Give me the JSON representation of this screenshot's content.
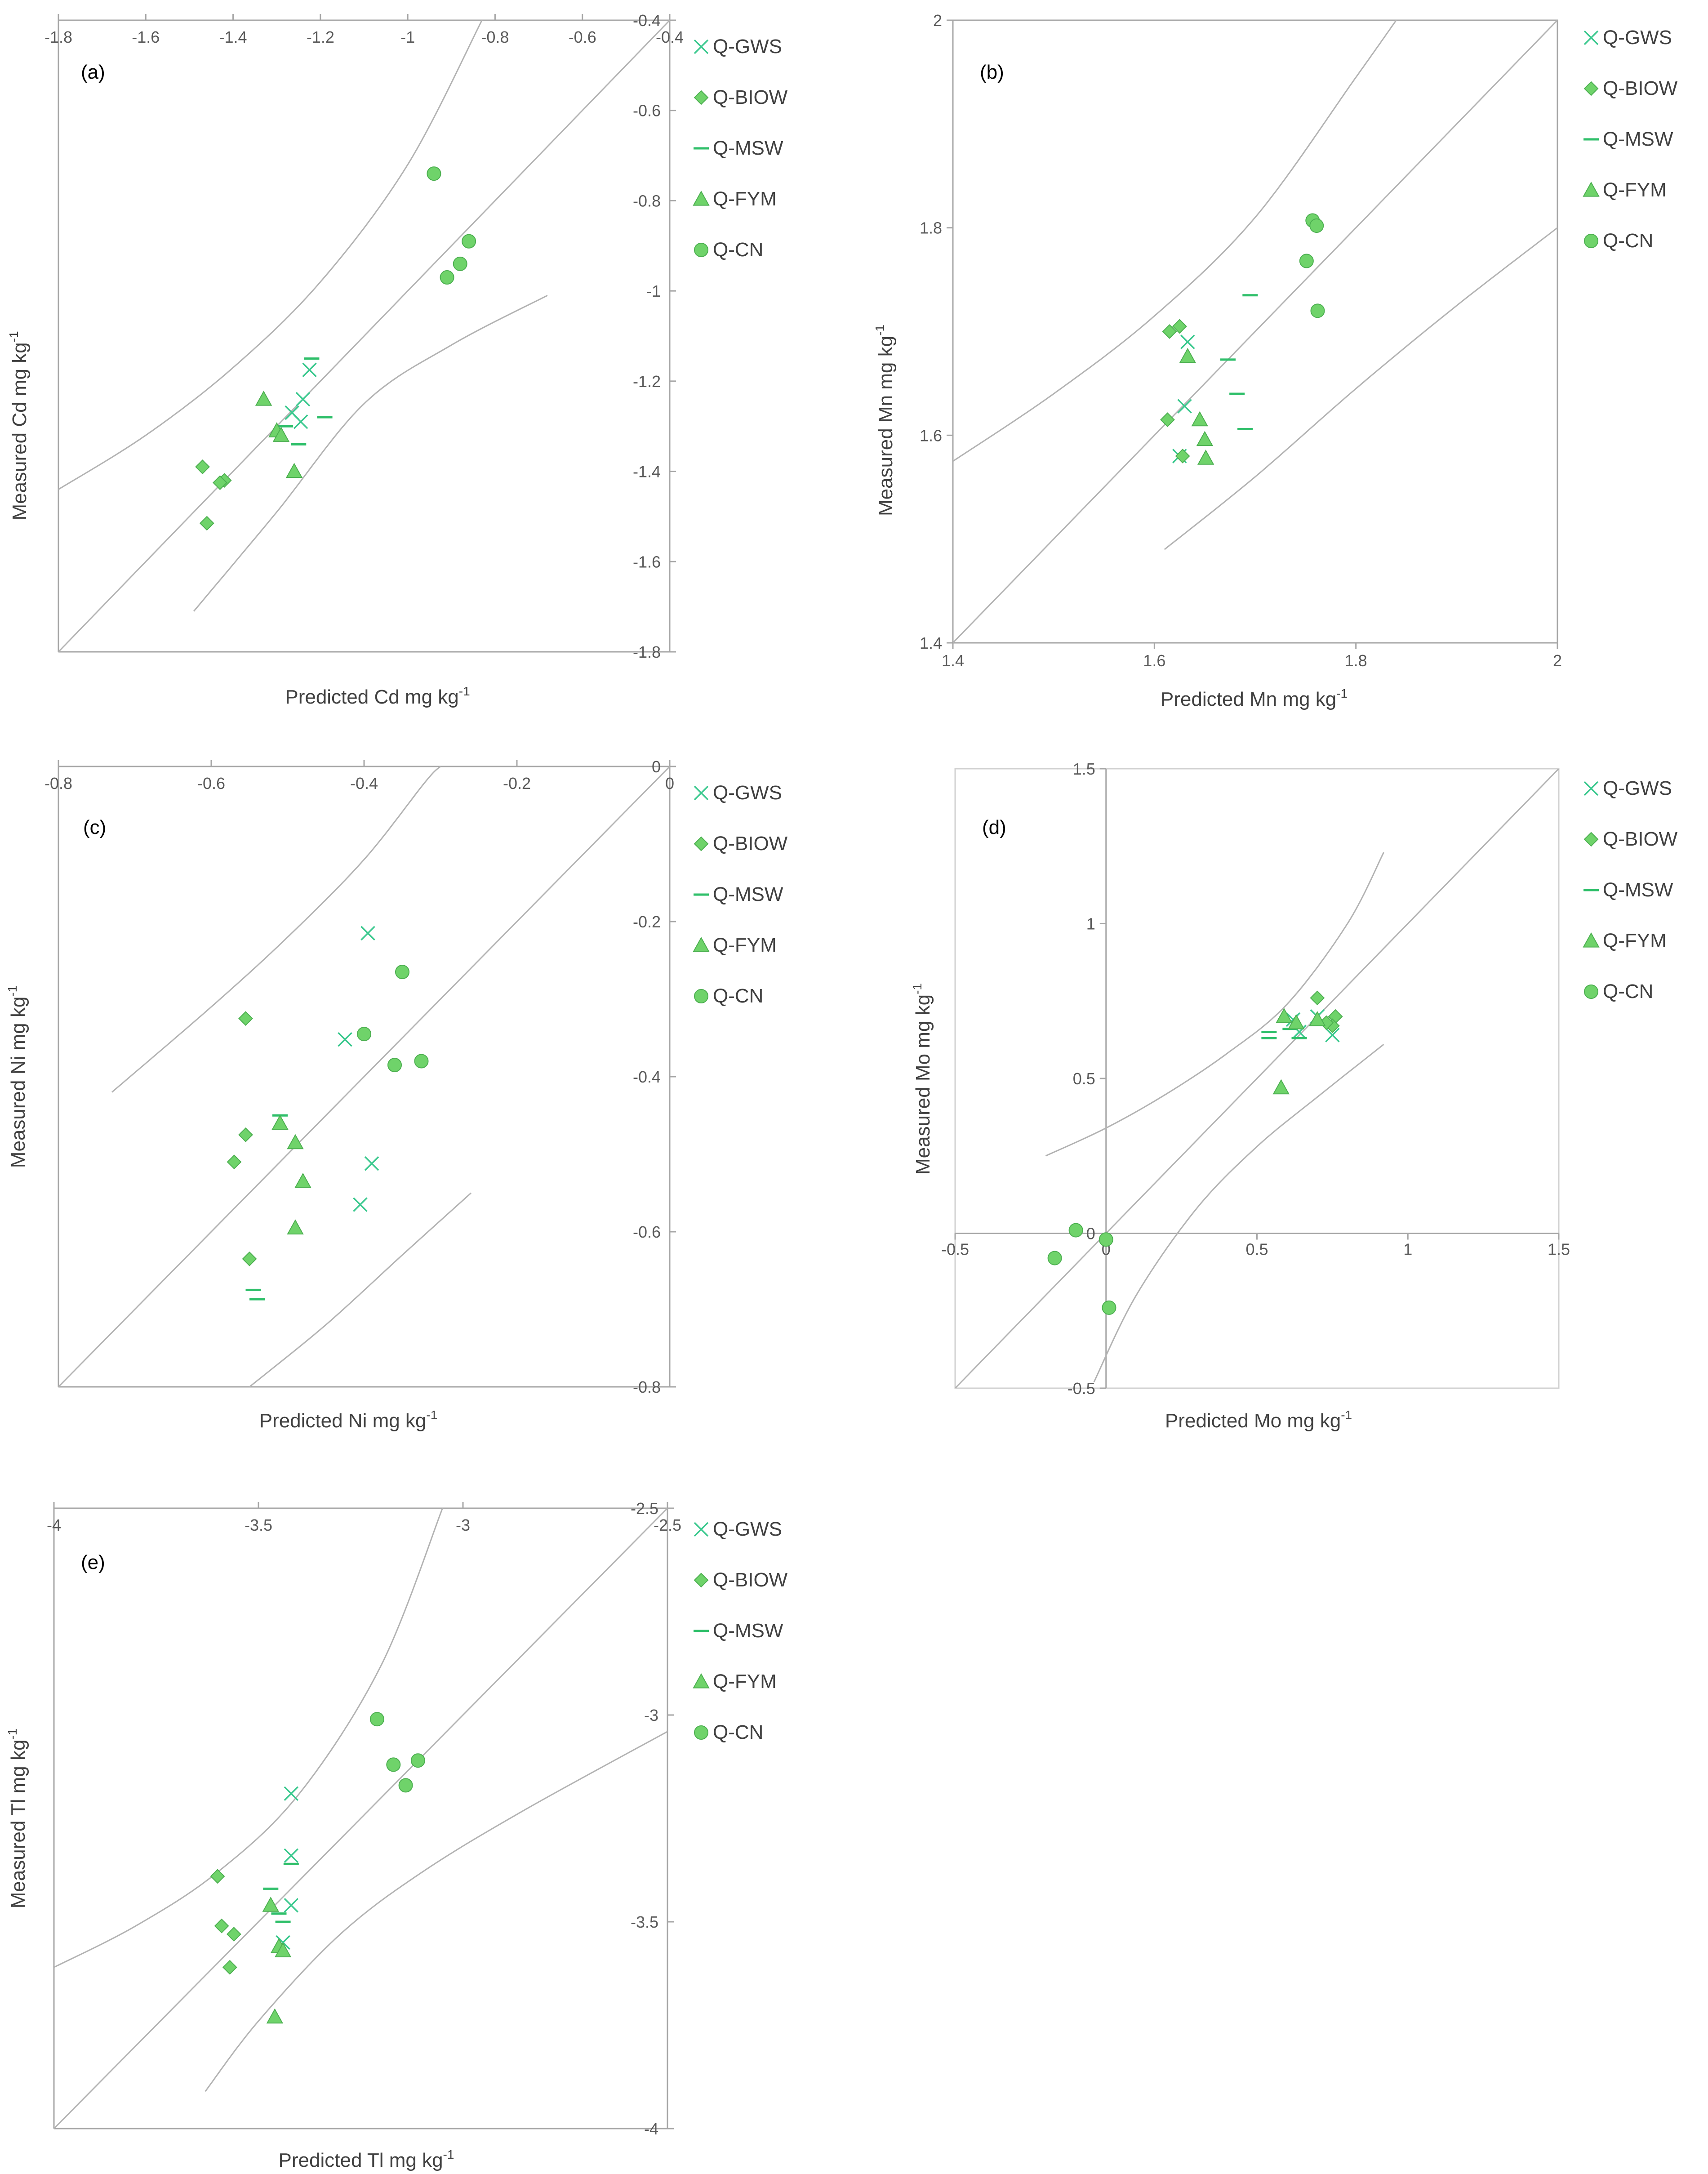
{
  "colors": {
    "marker_fill": "#6fd36a",
    "marker_stroke": "#4caf50",
    "marker_teal": "#3cc98f",
    "band_line": "#b3b3b3",
    "axis_line": "#a6a6a6"
  },
  "legend": [
    {
      "label": "Q-GWS",
      "marker": "x"
    },
    {
      "label": "Q-BIOW",
      "marker": "diamond"
    },
    {
      "label": "Q-MSW",
      "marker": "dash"
    },
    {
      "label": "Q-FYM",
      "marker": "triangle"
    },
    {
      "label": "Q-CN",
      "marker": "circle"
    }
  ],
  "chart_data": [
    {
      "type": "scatter",
      "panel": "(a)",
      "xlabel": "Predicted Cd mg kg",
      "ylabel": "Measured Cd mg kg",
      "unit_sup": "-1",
      "xlim": [
        -1.8,
        -0.4
      ],
      "ylim": [
        -1.8,
        -0.4
      ],
      "xticks": [
        "-1.8",
        "-1.6",
        "-1.4",
        "-1.2",
        "-1",
        "-0.8",
        "-0.6",
        "-0.4"
      ],
      "yticks": [
        "-0.4",
        "-0.6",
        "-0.8",
        "-1",
        "-1.2",
        "-1.4",
        "-1.6",
        "-1.8"
      ],
      "band_upper": [
        [
          -1.8,
          -1.44
        ],
        [
          -1.6,
          -1.32
        ],
        [
          -1.4,
          -1.17
        ],
        [
          -1.2,
          -0.98
        ],
        [
          -1.0,
          -0.72
        ],
        [
          -0.83,
          -0.4
        ]
      ],
      "band_lower": [
        [
          -1.49,
          -1.71
        ],
        [
          -1.3,
          -1.49
        ],
        [
          -1.1,
          -1.25
        ],
        [
          -0.9,
          -1.12
        ],
        [
          -0.68,
          -1.01
        ]
      ],
      "series": [
        {
          "name": "Q-GWS",
          "points": [
            [
              -1.265,
              -1.27
            ],
            [
              -1.24,
              -1.24
            ],
            [
              -1.245,
              -1.29
            ],
            [
              -1.225,
              -1.175
            ]
          ]
        },
        {
          "name": "Q-BIOW",
          "points": [
            [
              -1.47,
              -1.39
            ],
            [
              -1.42,
              -1.42
            ],
            [
              -1.43,
              -1.425
            ],
            [
              -1.46,
              -1.515
            ]
          ]
        },
        {
          "name": "Q-MSW",
          "points": [
            [
              -1.22,
              -1.15
            ],
            [
              -1.19,
              -1.28
            ],
            [
              -1.25,
              -1.34
            ],
            [
              -1.28,
              -1.3
            ]
          ]
        },
        {
          "name": "Q-FYM",
          "points": [
            [
              -1.33,
              -1.24
            ],
            [
              -1.3,
              -1.31
            ],
            [
              -1.29,
              -1.32
            ],
            [
              -1.26,
              -1.4
            ]
          ]
        },
        {
          "name": "Q-CN",
          "points": [
            [
              -0.94,
              -0.74
            ],
            [
              -0.86,
              -0.89
            ],
            [
              -0.88,
              -0.94
            ],
            [
              -0.91,
              -0.97
            ]
          ]
        }
      ]
    },
    {
      "type": "scatter",
      "panel": "(b)",
      "xlabel": "Predicted Mn mg kg",
      "ylabel": "Measured Mn mg kg",
      "unit_sup": "-1",
      "xlim": [
        1.4,
        2.0
      ],
      "ylim": [
        1.4,
        2.0
      ],
      "xticks": [
        "1.4",
        "1.6",
        "1.8",
        "2"
      ],
      "yticks": [
        "2",
        "1.8",
        "1.6",
        "1.4"
      ],
      "band_upper": [
        [
          1.4,
          1.575
        ],
        [
          1.5,
          1.64
        ],
        [
          1.6,
          1.715
        ],
        [
          1.7,
          1.81
        ],
        [
          1.8,
          1.945
        ],
        [
          1.84,
          2.0
        ]
      ],
      "band_lower": [
        [
          1.61,
          1.49
        ],
        [
          1.7,
          1.56
        ],
        [
          1.8,
          1.645
        ],
        [
          1.9,
          1.725
        ],
        [
          2.0,
          1.8
        ]
      ],
      "series": [
        {
          "name": "Q-GWS",
          "points": [
            [
              1.633,
              1.69
            ],
            [
              1.63,
              1.628
            ],
            [
              1.625,
              1.58
            ]
          ]
        },
        {
          "name": "Q-BIOW",
          "points": [
            [
              1.615,
              1.7
            ],
            [
              1.625,
              1.705
            ],
            [
              1.613,
              1.615
            ],
            [
              1.628,
              1.58
            ]
          ]
        },
        {
          "name": "Q-MSW",
          "points": [
            [
              1.695,
              1.735
            ],
            [
              1.673,
              1.673
            ],
            [
              1.682,
              1.64
            ],
            [
              1.69,
              1.606
            ]
          ]
        },
        {
          "name": "Q-FYM",
          "points": [
            [
              1.633,
              1.676
            ],
            [
              1.645,
              1.615
            ],
            [
              1.65,
              1.596
            ],
            [
              1.651,
              1.578
            ]
          ]
        },
        {
          "name": "Q-CN",
          "points": [
            [
              1.757,
              1.807
            ],
            [
              1.761,
              1.802
            ],
            [
              1.751,
              1.768
            ],
            [
              1.762,
              1.72
            ]
          ]
        }
      ]
    },
    {
      "type": "scatter",
      "panel": "(c)",
      "xlabel": "Predicted Ni mg kg",
      "ylabel": "Measured Ni mg kg",
      "unit_sup": "-1",
      "xlim": [
        -0.8,
        0.0
      ],
      "ylim": [
        -0.8,
        0.0
      ],
      "xticks": [
        "-0.8",
        "-0.6",
        "-0.4",
        "-0.2",
        "0"
      ],
      "yticks": [
        "0",
        "-0.2",
        "-0.4",
        "-0.6",
        "-0.8"
      ],
      "band_upper": [
        [
          -0.73,
          -0.42
        ],
        [
          -0.6,
          -0.31
        ],
        [
          -0.5,
          -0.22
        ],
        [
          -0.4,
          -0.12
        ],
        [
          -0.32,
          -0.02
        ],
        [
          -0.3,
          0.0
        ]
      ],
      "band_lower": [
        [
          -0.55,
          -0.8
        ],
        [
          -0.45,
          -0.72
        ],
        [
          -0.35,
          -0.63
        ],
        [
          -0.26,
          -0.55
        ]
      ],
      "series": [
        {
          "name": "Q-GWS",
          "points": [
            [
              -0.395,
              -0.215
            ],
            [
              -0.425,
              -0.352
            ],
            [
              -0.39,
              -0.512
            ],
            [
              -0.405,
              -0.565
            ]
          ]
        },
        {
          "name": "Q-BIOW",
          "points": [
            [
              -0.555,
              -0.325
            ],
            [
              -0.555,
              -0.475
            ],
            [
              -0.57,
              -0.51
            ],
            [
              -0.55,
              -0.635
            ]
          ]
        },
        {
          "name": "Q-MSW",
          "points": [
            [
              -0.51,
              -0.45
            ],
            [
              -0.545,
              -0.675
            ],
            [
              -0.54,
              -0.687
            ]
          ]
        },
        {
          "name": "Q-FYM",
          "points": [
            [
              -0.51,
              -0.46
            ],
            [
              -0.49,
              -0.485
            ],
            [
              -0.48,
              -0.535
            ],
            [
              -0.49,
              -0.595
            ]
          ]
        },
        {
          "name": "Q-CN",
          "points": [
            [
              -0.35,
              -0.265
            ],
            [
              -0.4,
              -0.345
            ],
            [
              -0.36,
              -0.385
            ],
            [
              -0.325,
              -0.38
            ]
          ]
        }
      ]
    },
    {
      "type": "scatter",
      "panel": "(d)",
      "xlabel": "Predicted Mo mg kg",
      "ylabel": "Measured Mo mg kg",
      "unit_sup": "-1",
      "xlim": [
        -0.5,
        1.5
      ],
      "ylim": [
        -0.5,
        1.5
      ],
      "xticks": [
        "-0.5",
        "0",
        "0.5",
        "1",
        "1.5"
      ],
      "yticks": [
        "1.5",
        "1",
        "0.5",
        "0",
        "-0.5"
      ],
      "band_upper": [
        [
          -0.2,
          0.25
        ],
        [
          0.0,
          0.34
        ],
        [
          0.2,
          0.45
        ],
        [
          0.4,
          0.58
        ],
        [
          0.6,
          0.74
        ],
        [
          0.8,
          1.0
        ],
        [
          0.92,
          1.23
        ]
      ],
      "band_lower": [
        [
          -0.04,
          -0.48
        ],
        [
          0.1,
          -0.2
        ],
        [
          0.3,
          0.08
        ],
        [
          0.5,
          0.28
        ],
        [
          0.7,
          0.44
        ],
        [
          0.92,
          0.61
        ]
      ],
      "series": [
        {
          "name": "Q-GWS",
          "points": [
            [
              0.62,
              0.69
            ],
            [
              0.64,
              0.65
            ],
            [
              0.7,
              0.7
            ],
            [
              0.75,
              0.64
            ]
          ]
        },
        {
          "name": "Q-BIOW",
          "points": [
            [
              0.7,
              0.76
            ],
            [
              0.76,
              0.7
            ],
            [
              0.75,
              0.67
            ],
            [
              0.73,
              0.68
            ]
          ]
        },
        {
          "name": "Q-MSW",
          "points": [
            [
              0.54,
              0.65
            ],
            [
              0.54,
              0.63
            ],
            [
              0.64,
              0.63
            ],
            [
              0.61,
              0.66
            ]
          ]
        },
        {
          "name": "Q-FYM",
          "points": [
            [
              0.59,
              0.7
            ],
            [
              0.63,
              0.68
            ],
            [
              0.7,
              0.69
            ],
            [
              0.58,
              0.47
            ]
          ]
        },
        {
          "name": "Q-CN",
          "points": [
            [
              -0.1,
              0.01
            ],
            [
              0.0,
              -0.02
            ],
            [
              -0.17,
              -0.08
            ],
            [
              0.01,
              -0.24
            ]
          ]
        }
      ]
    },
    {
      "type": "scatter",
      "panel": "(e)",
      "xlabel": "Predicted Tl mg kg",
      "ylabel": "Measured Tl mg kg",
      "unit_sup": "-1",
      "xlim": [
        -4.0,
        -2.5
      ],
      "ylim": [
        -4.0,
        -2.5
      ],
      "xticks": [
        "-4",
        "-3.5",
        "-3",
        "-2.5"
      ],
      "yticks": [
        "-2.5",
        "-3",
        "-3.5",
        "-4"
      ],
      "band_upper": [
        [
          -4.0,
          -3.61
        ],
        [
          -3.8,
          -3.51
        ],
        [
          -3.6,
          -3.38
        ],
        [
          -3.4,
          -3.19
        ],
        [
          -3.2,
          -2.88
        ],
        [
          -3.05,
          -2.5
        ]
      ],
      "band_lower": [
        [
          -3.63,
          -3.91
        ],
        [
          -3.5,
          -3.74
        ],
        [
          -3.3,
          -3.53
        ],
        [
          -3.1,
          -3.38
        ],
        [
          -2.85,
          -3.23
        ],
        [
          -2.5,
          -3.04
        ]
      ],
      "series": [
        {
          "name": "Q-GWS",
          "points": [
            [
              -3.42,
              -3.19
            ],
            [
              -3.42,
              -3.34
            ],
            [
              -3.42,
              -3.46
            ],
            [
              -3.44,
              -3.55
            ]
          ]
        },
        {
          "name": "Q-BIOW",
          "points": [
            [
              -3.6,
              -3.39
            ],
            [
              -3.59,
              -3.51
            ],
            [
              -3.56,
              -3.53
            ],
            [
              -3.57,
              -3.61
            ]
          ]
        },
        {
          "name": "Q-MSW",
          "points": [
            [
              -3.47,
              -3.42
            ],
            [
              -3.45,
              -3.48
            ],
            [
              -3.44,
              -3.5
            ],
            [
              -3.42,
              -3.36
            ]
          ]
        },
        {
          "name": "Q-FYM",
          "points": [
            [
              -3.47,
              -3.46
            ],
            [
              -3.45,
              -3.56
            ],
            [
              -3.44,
              -3.57
            ],
            [
              -3.46,
              -3.73
            ]
          ]
        },
        {
          "name": "Q-CN",
          "points": [
            [
              -3.21,
              -3.01
            ],
            [
              -3.17,
              -3.12
            ],
            [
              -3.11,
              -3.11
            ],
            [
              -3.14,
              -3.17
            ]
          ]
        }
      ]
    }
  ]
}
